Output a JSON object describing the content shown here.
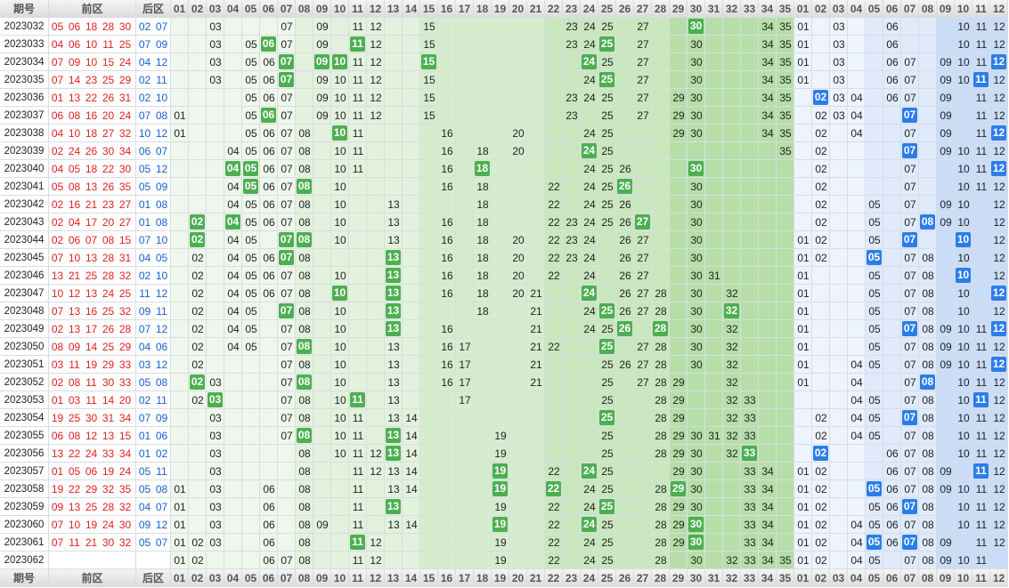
{
  "header": {
    "issue": "期号",
    "front": "前区",
    "back": "后区",
    "front_cols": [
      "01",
      "02",
      "03",
      "04",
      "05",
      "06",
      "07",
      "08",
      "09",
      "10",
      "11",
      "12",
      "13",
      "14",
      "15",
      "16",
      "17",
      "18",
      "19",
      "20",
      "21",
      "22",
      "23",
      "24",
      "25",
      "26",
      "27",
      "28",
      "29",
      "30",
      "31",
      "32",
      "33",
      "34",
      "35"
    ],
    "back_cols": [
      "01",
      "02",
      "03",
      "04",
      "05",
      "06",
      "07",
      "08",
      "09",
      "10",
      "11",
      "12"
    ]
  },
  "rows": [
    {
      "issue": "2023032",
      "front": [
        "05",
        "06",
        "18",
        "28",
        "30"
      ],
      "back": [
        "02",
        "07"
      ],
      "fc": [
        "03",
        "07",
        "09",
        "11",
        "12",
        "15",
        "23",
        "24",
        "25",
        "27",
        "34",
        "35"
      ],
      "fh": [
        "30"
      ],
      "bc": [
        "01",
        "03",
        "06",
        "10",
        "11",
        "12"
      ],
      "bh": []
    },
    {
      "issue": "2023033",
      "front": [
        "04",
        "06",
        "10",
        "11",
        "25"
      ],
      "back": [
        "07",
        "09"
      ],
      "fc": [
        "03",
        "05",
        "07",
        "09",
        "12",
        "15",
        "23",
        "24",
        "27",
        "30",
        "34",
        "35"
      ],
      "fh": [
        "06",
        "11",
        "25"
      ],
      "bc": [
        "01",
        "03",
        "06",
        "10",
        "11",
        "12"
      ],
      "bh": []
    },
    {
      "issue": "2023034",
      "front": [
        "07",
        "09",
        "10",
        "15",
        "24"
      ],
      "back": [
        "04",
        "12"
      ],
      "fc": [
        "03",
        "05",
        "06",
        "11",
        "12",
        "25",
        "27",
        "30",
        "34",
        "35"
      ],
      "fh": [
        "07",
        "09",
        "10",
        "15",
        "24"
      ],
      "bc": [
        "01",
        "03",
        "06",
        "07",
        "09",
        "10",
        "11"
      ],
      "bh": [
        "12"
      ]
    },
    {
      "issue": "2023035",
      "front": [
        "07",
        "14",
        "23",
        "25",
        "29"
      ],
      "back": [
        "02",
        "11"
      ],
      "fc": [
        "03",
        "05",
        "06",
        "09",
        "10",
        "11",
        "12",
        "15",
        "24",
        "27",
        "30",
        "34",
        "35"
      ],
      "fh": [
        "07",
        "25"
      ],
      "bc": [
        "01",
        "03",
        "06",
        "07",
        "09",
        "10",
        "12"
      ],
      "bh": [
        "11"
      ]
    },
    {
      "issue": "2023036",
      "front": [
        "01",
        "13",
        "22",
        "26",
        "31"
      ],
      "back": [
        "02",
        "10"
      ],
      "fc": [
        "05",
        "06",
        "07",
        "09",
        "10",
        "11",
        "12",
        "15",
        "23",
        "24",
        "25",
        "27",
        "29",
        "30",
        "34",
        "35"
      ],
      "fh": [],
      "bc": [
        "03",
        "04",
        "06",
        "07",
        "09",
        "11",
        "12"
      ],
      "bh": [
        "02"
      ]
    },
    {
      "issue": "2023037",
      "front": [
        "06",
        "08",
        "16",
        "20",
        "24"
      ],
      "back": [
        "07",
        "08"
      ],
      "fc": [
        "01",
        "05",
        "07",
        "09",
        "10",
        "11",
        "12",
        "15",
        "23",
        "25",
        "27",
        "29",
        "30",
        "34",
        "35"
      ],
      "fh": [
        "06"
      ],
      "bc": [
        "02",
        "03",
        "04",
        "09",
        "11",
        "12"
      ],
      "bh": [
        "07"
      ]
    },
    {
      "issue": "2023038",
      "front": [
        "04",
        "10",
        "18",
        "27",
        "32"
      ],
      "back": [
        "10",
        "12"
      ],
      "fc": [
        "01",
        "05",
        "06",
        "07",
        "08",
        "11",
        "16",
        "20",
        "24",
        "25",
        "29",
        "30",
        "34",
        "35"
      ],
      "fh": [
        "10"
      ],
      "bc": [
        "02",
        "04",
        "07",
        "09",
        "11"
      ],
      "bh": [
        "12"
      ]
    },
    {
      "issue": "2023039",
      "front": [
        "02",
        "24",
        "26",
        "30",
        "34"
      ],
      "back": [
        "06",
        "07"
      ],
      "fc": [
        "04",
        "05",
        "06",
        "07",
        "08",
        "10",
        "11",
        "16",
        "18",
        "20",
        "25",
        "35"
      ],
      "fh": [
        "24"
      ],
      "bc": [
        "02",
        "09",
        "10",
        "11",
        "12"
      ],
      "bh": [
        "07"
      ]
    },
    {
      "issue": "2023040",
      "front": [
        "04",
        "05",
        "18",
        "22",
        "30"
      ],
      "back": [
        "05",
        "12"
      ],
      "fc": [
        "06",
        "07",
        "08",
        "10",
        "11",
        "16",
        "24",
        "25",
        "26"
      ],
      "fh": [
        "04",
        "05",
        "18",
        "30"
      ],
      "bc": [
        "02",
        "07",
        "10",
        "11"
      ],
      "bh": [
        "12"
      ]
    },
    {
      "issue": "2023041",
      "front": [
        "05",
        "08",
        "13",
        "26",
        "35"
      ],
      "back": [
        "05",
        "09"
      ],
      "fc": [
        "04",
        "06",
        "07",
        "10",
        "16",
        "18",
        "22",
        "24",
        "25",
        "30"
      ],
      "fh": [
        "05",
        "08",
        "26"
      ],
      "bc": [
        "02",
        "07",
        "10",
        "11",
        "12"
      ],
      "bh": []
    },
    {
      "issue": "2023042",
      "front": [
        "02",
        "16",
        "21",
        "23",
        "27"
      ],
      "back": [
        "01",
        "08"
      ],
      "fc": [
        "04",
        "05",
        "06",
        "07",
        "08",
        "10",
        "13",
        "18",
        "22",
        "24",
        "25",
        "26",
        "30"
      ],
      "fh": [],
      "bc": [
        "02",
        "05",
        "07",
        "09",
        "10",
        "12"
      ],
      "bh": []
    },
    {
      "issue": "2023043",
      "front": [
        "02",
        "04",
        "17",
        "20",
        "27"
      ],
      "back": [
        "01",
        "08"
      ],
      "fc": [
        "05",
        "06",
        "07",
        "08",
        "10",
        "13",
        "16",
        "18",
        "22",
        "23",
        "24",
        "25",
        "26",
        "30"
      ],
      "fh": [
        "02",
        "04",
        "27"
      ],
      "bc": [
        "02",
        "05",
        "07",
        "09",
        "10",
        "12"
      ],
      "bh": [
        "08"
      ]
    },
    {
      "issue": "2023044",
      "front": [
        "02",
        "06",
        "07",
        "08",
        "15"
      ],
      "back": [
        "07",
        "10"
      ],
      "fc": [
        "04",
        "05",
        "10",
        "13",
        "16",
        "18",
        "20",
        "22",
        "23",
        "24",
        "26",
        "27",
        "30"
      ],
      "fh": [
        "02",
        "07",
        "08"
      ],
      "bc": [
        "01",
        "02",
        "05",
        "12"
      ],
      "bh": [
        "07",
        "10"
      ]
    },
    {
      "issue": "2023045",
      "front": [
        "07",
        "10",
        "13",
        "28",
        "31"
      ],
      "back": [
        "04",
        "05"
      ],
      "fc": [
        "02",
        "04",
        "05",
        "06",
        "08",
        "16",
        "18",
        "20",
        "22",
        "23",
        "24",
        "26",
        "27",
        "30"
      ],
      "fh": [
        "07",
        "13"
      ],
      "bc": [
        "01",
        "02",
        "07",
        "08",
        "10",
        "12"
      ],
      "bh": [
        "05"
      ]
    },
    {
      "issue": "2023046",
      "front": [
        "13",
        "21",
        "25",
        "28",
        "32"
      ],
      "back": [
        "02",
        "10"
      ],
      "fc": [
        "02",
        "04",
        "05",
        "06",
        "07",
        "08",
        "10",
        "16",
        "18",
        "20",
        "22",
        "24",
        "26",
        "27",
        "30",
        "31"
      ],
      "fh": [
        "13"
      ],
      "bc": [
        "01",
        "05",
        "07",
        "08",
        "12"
      ],
      "bh": [
        "10"
      ]
    },
    {
      "issue": "2023047",
      "front": [
        "10",
        "12",
        "13",
        "24",
        "25"
      ],
      "back": [
        "11",
        "12"
      ],
      "fc": [
        "02",
        "04",
        "05",
        "06",
        "07",
        "08",
        "16",
        "18",
        "20",
        "21",
        "26",
        "27",
        "28",
        "30",
        "32"
      ],
      "fh": [
        "10",
        "13",
        "24"
      ],
      "bc": [
        "01",
        "05",
        "07",
        "08",
        "10"
      ],
      "bh": [
        "12"
      ]
    },
    {
      "issue": "2023048",
      "front": [
        "07",
        "13",
        "16",
        "25",
        "32"
      ],
      "back": [
        "09",
        "11"
      ],
      "fc": [
        "02",
        "04",
        "05",
        "08",
        "10",
        "18",
        "21",
        "24",
        "26",
        "27",
        "28",
        "30"
      ],
      "fh": [
        "07",
        "13",
        "25",
        "32"
      ],
      "bc": [
        "01",
        "05",
        "07",
        "08",
        "10",
        "12"
      ],
      "bh": []
    },
    {
      "issue": "2023049",
      "front": [
        "02",
        "13",
        "17",
        "26",
        "28"
      ],
      "back": [
        "07",
        "12"
      ],
      "fc": [
        "02",
        "04",
        "05",
        "07",
        "08",
        "10",
        "16",
        "21",
        "24",
        "25",
        "30",
        "32"
      ],
      "fh": [
        "13",
        "26",
        "28"
      ],
      "bc": [
        "01",
        "05",
        "08",
        "09",
        "10",
        "11"
      ],
      "bh": [
        "07",
        "12"
      ]
    },
    {
      "issue": "2023050",
      "front": [
        "08",
        "09",
        "14",
        "25",
        "29"
      ],
      "back": [
        "04",
        "06"
      ],
      "fc": [
        "02",
        "04",
        "05",
        "07",
        "10",
        "13",
        "16",
        "17",
        "21",
        "22",
        "27",
        "28",
        "30",
        "32"
      ],
      "fh": [
        "08",
        "25"
      ],
      "bc": [
        "01",
        "05",
        "07",
        "08",
        "09",
        "10",
        "11",
        "12"
      ],
      "bh": []
    },
    {
      "issue": "2023051",
      "front": [
        "03",
        "11",
        "19",
        "29",
        "33"
      ],
      "back": [
        "03",
        "12"
      ],
      "fc": [
        "02",
        "07",
        "08",
        "10",
        "13",
        "16",
        "17",
        "21",
        "25",
        "26",
        "27",
        "28",
        "30",
        "32"
      ],
      "fh": [],
      "bc": [
        "01",
        "04",
        "05",
        "07",
        "08",
        "09",
        "10",
        "11"
      ],
      "bh": [
        "12"
      ]
    },
    {
      "issue": "2023052",
      "front": [
        "02",
        "08",
        "11",
        "30",
        "33"
      ],
      "back": [
        "05",
        "08"
      ],
      "fc": [
        "03",
        "07",
        "10",
        "13",
        "16",
        "17",
        "21",
        "25",
        "27",
        "28",
        "29",
        "32"
      ],
      "fh": [
        "02",
        "08"
      ],
      "bc": [
        "01",
        "04",
        "07",
        "10",
        "11",
        "12"
      ],
      "bh": [
        "08"
      ]
    },
    {
      "issue": "2023053",
      "front": [
        "01",
        "03",
        "11",
        "14",
        "20"
      ],
      "back": [
        "02",
        "11"
      ],
      "fc": [
        "02",
        "07",
        "08",
        "10",
        "13",
        "17",
        "25",
        "28",
        "29",
        "32",
        "33"
      ],
      "fh": [
        "03",
        "11"
      ],
      "bc": [
        "04",
        "05",
        "07",
        "08",
        "10",
        "12"
      ],
      "bh": [
        "11"
      ]
    },
    {
      "issue": "2023054",
      "front": [
        "19",
        "25",
        "30",
        "31",
        "34"
      ],
      "back": [
        "07",
        "09"
      ],
      "fc": [
        "03",
        "07",
        "08",
        "10",
        "11",
        "13",
        "14",
        "28",
        "29",
        "32",
        "33"
      ],
      "fh": [
        "25"
      ],
      "bc": [
        "02",
        "04",
        "05",
        "08",
        "10",
        "11",
        "12"
      ],
      "bh": [
        "07"
      ]
    },
    {
      "issue": "2023055",
      "front": [
        "06",
        "08",
        "12",
        "13",
        "15"
      ],
      "back": [
        "01",
        "06"
      ],
      "fc": [
        "03",
        "07",
        "10",
        "11",
        "14",
        "19",
        "25",
        "28",
        "29",
        "30",
        "31",
        "32",
        "33"
      ],
      "fh": [
        "08",
        "13"
      ],
      "bc": [
        "02",
        "04",
        "05",
        "07",
        "08",
        "10",
        "11",
        "12"
      ],
      "bh": []
    },
    {
      "issue": "2023056",
      "front": [
        "13",
        "22",
        "24",
        "33",
        "34"
      ],
      "back": [
        "01",
        "02"
      ],
      "fc": [
        "03",
        "08",
        "10",
        "11",
        "12",
        "14",
        "19",
        "25",
        "28",
        "29",
        "30",
        "32"
      ],
      "fh": [
        "13",
        "33"
      ],
      "bc": [
        "06",
        "07",
        "08",
        "10",
        "11",
        "12"
      ],
      "bh": [
        "02"
      ]
    },
    {
      "issue": "2023057",
      "front": [
        "01",
        "05",
        "06",
        "19",
        "24"
      ],
      "back": [
        "05",
        "11"
      ],
      "fc": [
        "03",
        "08",
        "11",
        "12",
        "13",
        "14",
        "22",
        "25",
        "29",
        "30",
        "33",
        "34"
      ],
      "fh": [
        "19",
        "24"
      ],
      "bc": [
        "01",
        "02",
        "06",
        "07",
        "08",
        "09",
        "12"
      ],
      "bh": [
        "11"
      ]
    },
    {
      "issue": "2023058",
      "front": [
        "19",
        "22",
        "29",
        "32",
        "35"
      ],
      "back": [
        "05",
        "08"
      ],
      "fc": [
        "01",
        "03",
        "06",
        "08",
        "11",
        "13",
        "14",
        "24",
        "25",
        "28",
        "30",
        "33",
        "34"
      ],
      "fh": [
        "19",
        "22",
        "29"
      ],
      "bc": [
        "01",
        "02",
        "06",
        "07",
        "08",
        "09",
        "10",
        "11",
        "12"
      ],
      "bh": [
        "05"
      ]
    },
    {
      "issue": "2023059",
      "front": [
        "09",
        "13",
        "25",
        "28",
        "32"
      ],
      "back": [
        "04",
        "07"
      ],
      "fc": [
        "01",
        "03",
        "06",
        "08",
        "11",
        "19",
        "22",
        "24",
        "28",
        "29",
        "30",
        "33",
        "34"
      ],
      "fh": [
        "13",
        "25"
      ],
      "bc": [
        "01",
        "02",
        "05",
        "06",
        "08",
        "10",
        "11",
        "12"
      ],
      "bh": [
        "07"
      ]
    },
    {
      "issue": "2023060",
      "front": [
        "07",
        "10",
        "19",
        "24",
        "30"
      ],
      "back": [
        "09",
        "12"
      ],
      "fc": [
        "01",
        "03",
        "06",
        "08",
        "09",
        "11",
        "13",
        "14",
        "22",
        "25",
        "28",
        "29",
        "33",
        "34"
      ],
      "fh": [
        "19",
        "24",
        "30"
      ],
      "bc": [
        "01",
        "02",
        "04",
        "05",
        "06",
        "07",
        "08",
        "10",
        "11",
        "12"
      ],
      "bh": []
    },
    {
      "issue": "2023061",
      "front": [
        "07",
        "11",
        "21",
        "30",
        "32"
      ],
      "back": [
        "05",
        "07"
      ],
      "fc": [
        "01",
        "02",
        "03",
        "06",
        "08",
        "12",
        "19",
        "22",
        "24",
        "25",
        "28",
        "29",
        "33",
        "34"
      ],
      "fh": [
        "11",
        "30"
      ],
      "bc": [
        "01",
        "02",
        "04",
        "06",
        "08",
        "09",
        "11",
        "12"
      ],
      "bh": [
        "05",
        "07"
      ]
    },
    {
      "issue": "2023062",
      "front": [],
      "back": [],
      "fc": [
        "01",
        "02",
        "06",
        "07",
        "08",
        "11",
        "12",
        "19",
        "22",
        "24",
        "25",
        "28",
        "30",
        "32",
        "33",
        "34",
        "35"
      ],
      "fh": [],
      "bc": [
        "01",
        "02",
        "04",
        "05",
        "07",
        "08",
        "09",
        "10",
        "11"
      ],
      "bh": []
    }
  ]
}
